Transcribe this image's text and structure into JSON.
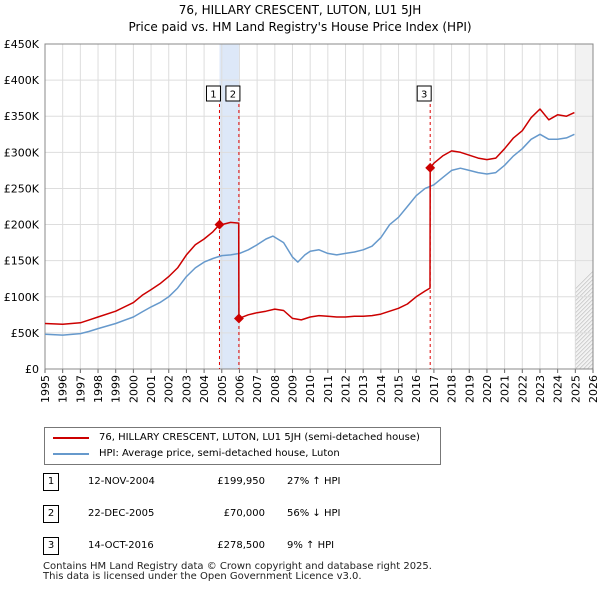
{
  "title": {
    "line1": "76, HILLARY CRESCENT, LUTON, LU1 5JH",
    "line2": "Price paid vs. HM Land Registry's House Price Index (HPI)"
  },
  "colors": {
    "price_line": "#cc0000",
    "hpi_line": "#6699cc",
    "highlight_band": "#dde8f8",
    "grid": "#dddddd",
    "marker_line": "#dd0000"
  },
  "legend": {
    "price_label": "76, HILLARY CRESCENT, LUTON, LU1 5JH (semi-detached house)",
    "hpi_label": "HPI: Average price, semi-detached house, Luton"
  },
  "sales": [
    {
      "num": "1",
      "date": "12-NOV-2004",
      "price": "£199,950",
      "hpi": "27% ↑ HPI"
    },
    {
      "num": "2",
      "date": "22-DEC-2005",
      "price": "£70,000",
      "hpi": "56% ↓ HPI"
    },
    {
      "num": "3",
      "date": "14-OCT-2016",
      "price": "£278,500",
      "hpi": "9% ↑ HPI"
    }
  ],
  "footer": {
    "line1": "Contains HM Land Registry data © Crown copyright and database right 2025.",
    "line2": "This data is licensed under the Open Government Licence v3.0."
  },
  "chart_data": {
    "type": "line",
    "title": "76, HILLARY CRESCENT, LUTON, LU1 5JH",
    "subtitle": "Price paid vs. HM Land Registry's House Price Index (HPI)",
    "xlabel": "",
    "ylabel": "",
    "xlim": [
      1995,
      2026
    ],
    "ylim": [
      0,
      450000
    ],
    "grid": true,
    "legend_position": "bottom-left",
    "x_ticks": [
      "1995",
      "1996",
      "1997",
      "1998",
      "1999",
      "2000",
      "2001",
      "2002",
      "2003",
      "2004",
      "2005",
      "2006",
      "2007",
      "2008",
      "2009",
      "2010",
      "2011",
      "2012",
      "2013",
      "2014",
      "2015",
      "2016",
      "2017",
      "2018",
      "2019",
      "2020",
      "2021",
      "2022",
      "2023",
      "2024",
      "2025",
      "2026"
    ],
    "y_ticks": [
      {
        "value": 0,
        "label": "£0"
      },
      {
        "value": 50000,
        "label": "£50K"
      },
      {
        "value": 100000,
        "label": "£100K"
      },
      {
        "value": 150000,
        "label": "£150K"
      },
      {
        "value": 200000,
        "label": "£200K"
      },
      {
        "value": 250000,
        "label": "£250K"
      },
      {
        "value": 300000,
        "label": "£300K"
      },
      {
        "value": 350000,
        "label": "£350K"
      },
      {
        "value": 400000,
        "label": "£400K"
      },
      {
        "value": 450000,
        "label": "£450K"
      }
    ],
    "highlight_band": [
      2004.87,
      2005.97
    ],
    "future_hatch_from": 2025.0,
    "sale_markers": [
      {
        "label": "1",
        "x": 2004.87,
        "y": 199950
      },
      {
        "label": "2",
        "x": 2005.97,
        "y": 70000
      },
      {
        "label": "3",
        "x": 2016.79,
        "y": 278500
      }
    ],
    "series": [
      {
        "name": "76, HILLARY CRESCENT, LUTON, LU1 5JH (semi-detached house)",
        "x": [
          1995.0,
          1996.0,
          1997.0,
          1997.5,
          1998.0,
          1999.0,
          2000.0,
          2000.5,
          2001.0,
          2001.5,
          2002.0,
          2002.5,
          2003.0,
          2003.5,
          2004.0,
          2004.5,
          2004.87,
          2005.0,
          2005.5,
          2005.96,
          2005.97,
          2006.5,
          2007.0,
          2007.5,
          2008.0,
          2008.5,
          2009.0,
          2009.5,
          2010.0,
          2010.5,
          2011.0,
          2011.5,
          2012.0,
          2012.5,
          2013.0,
          2013.5,
          2014.0,
          2014.5,
          2015.0,
          2015.5,
          2016.0,
          2016.5,
          2016.78,
          2016.79,
          2017.0,
          2017.5,
          2018.0,
          2018.5,
          2019.0,
          2019.5,
          2020.0,
          2020.5,
          2021.0,
          2021.5,
          2022.0,
          2022.5,
          2023.0,
          2023.5,
          2024.0,
          2024.5,
          2024.95
        ],
        "values": [
          63000,
          62000,
          64000,
          68000,
          72000,
          80000,
          92000,
          102000,
          110000,
          118000,
          128000,
          140000,
          158000,
          172000,
          180000,
          190000,
          199950,
          200000,
          203000,
          202000,
          70000,
          75000,
          78000,
          80000,
          83000,
          81000,
          70000,
          68000,
          72000,
          74000,
          73000,
          72000,
          72000,
          73000,
          73000,
          74000,
          76000,
          80000,
          84000,
          90000,
          100000,
          108000,
          112000,
          278500,
          285000,
          295000,
          302000,
          300000,
          296000,
          292000,
          290000,
          292000,
          305000,
          320000,
          330000,
          348000,
          360000,
          345000,
          352000,
          350000,
          355000
        ]
      },
      {
        "name": "HPI: Average price, semi-detached house, Luton",
        "x": [
          1995.0,
          1996.0,
          1997.0,
          1997.5,
          1998.0,
          1999.0,
          2000.0,
          2000.5,
          2001.0,
          2001.5,
          2002.0,
          2002.5,
          2003.0,
          2003.5,
          2004.0,
          2004.5,
          2005.0,
          2005.5,
          2006.0,
          2006.5,
          2007.0,
          2007.5,
          2007.9,
          2008.5,
          2009.0,
          2009.3,
          2009.7,
          2010.0,
          2010.5,
          2011.0,
          2011.5,
          2012.0,
          2012.5,
          2013.0,
          2013.5,
          2014.0,
          2014.5,
          2015.0,
          2015.5,
          2016.0,
          2016.5,
          2017.0,
          2017.5,
          2018.0,
          2018.5,
          2019.0,
          2019.5,
          2020.0,
          2020.5,
          2021.0,
          2021.5,
          2022.0,
          2022.5,
          2023.0,
          2023.5,
          2024.0,
          2024.5,
          2024.95
        ],
        "values": [
          48000,
          47000,
          49000,
          52000,
          56000,
          63000,
          72000,
          79000,
          86000,
          92000,
          100000,
          112000,
          128000,
          140000,
          148000,
          153000,
          157000,
          158000,
          160000,
          165000,
          172000,
          180000,
          184000,
          175000,
          155000,
          148000,
          158000,
          163000,
          165000,
          160000,
          158000,
          160000,
          162000,
          165000,
          170000,
          182000,
          200000,
          210000,
          225000,
          240000,
          250000,
          255000,
          265000,
          275000,
          278000,
          275000,
          272000,
          270000,
          272000,
          282000,
          295000,
          305000,
          318000,
          325000,
          318000,
          318000,
          320000,
          325000
        ]
      }
    ]
  }
}
